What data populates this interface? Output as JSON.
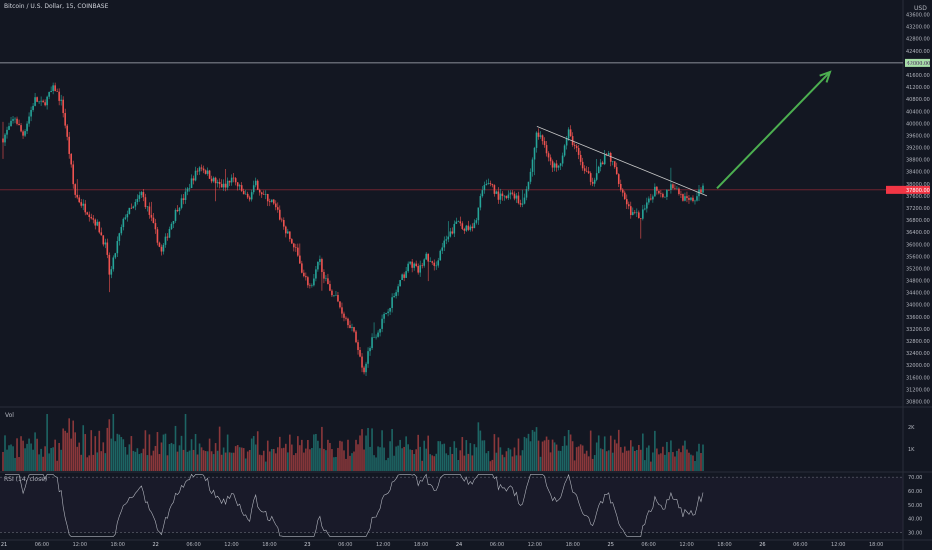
{
  "header": {
    "symbol_line": "Bitcoin / U.S. Dollar, 15, COINBASE",
    "currency": "USD"
  },
  "panes": {
    "volume_label": "Vol",
    "rsi_label": "RSI (14, close)"
  },
  "colors": {
    "background": "#131722",
    "up": "#26a69a",
    "down": "#ef5350",
    "price_line": "#f23645",
    "target_line": "#b2b5be",
    "target_badge": "#a7e0a7",
    "arrow": "#4caf50",
    "trendline": "#c8c8c8",
    "rsi_line": "#b2b5be"
  },
  "chart_data": {
    "type": "candlestick",
    "price_axis_ticks": [
      43600,
      43200,
      42800,
      42400,
      42000,
      41600,
      41200,
      40800,
      40400,
      40000,
      39600,
      39200,
      38800,
      38400,
      38000,
      37600,
      37200,
      36800,
      36400,
      36000,
      35600,
      35200,
      34800,
      34400,
      34000,
      33600,
      33200,
      32800,
      32400,
      32000,
      31600,
      31200,
      30800
    ],
    "price_tick_labels": [
      "43600.00",
      "43200.00",
      "42800.00",
      "42400.00",
      "42000.00",
      "41600.00",
      "41200.00",
      "40800.00",
      "40400.00",
      "40000.00",
      "39600.00",
      "39200.00",
      "38800.00",
      "38400.00",
      "38000.00",
      "37600.00",
      "37200.00",
      "36800.00",
      "36400.00",
      "36000.00",
      "35600.00",
      "35200.00",
      "34800.00",
      "34400.00",
      "34000.00",
      "33600.00",
      "33200.00",
      "32800.00",
      "32400.00",
      "32000.00",
      "31600.00",
      "31200.00",
      "30800.00"
    ],
    "ylim": [
      30650,
      43750
    ],
    "horizontal_level": {
      "value": 42000,
      "label": "42000.00"
    },
    "current_price": {
      "value": 37800,
      "label": "37800.00"
    },
    "time_axis_labels": [
      "21",
      "06:00",
      "12:00",
      "18:00",
      "22",
      "06:00",
      "12:00",
      "18:00",
      "23",
      "06:00",
      "12:00",
      "18:00",
      "24",
      "06:00",
      "12:00",
      "18:00",
      "25",
      "06:00",
      "12:00",
      "18:00",
      "26",
      "06:00",
      "12:00",
      "18:00"
    ],
    "price_path": [
      {
        "t": 0,
        "p": 39500
      },
      {
        "t": 3,
        "p": 40200
      },
      {
        "t": 5,
        "p": 39600
      },
      {
        "t": 8,
        "p": 40800
      },
      {
        "t": 10,
        "p": 40600
      },
      {
        "t": 13,
        "p": 41200
      },
      {
        "t": 15,
        "p": 40600
      },
      {
        "t": 17,
        "p": 38800
      },
      {
        "t": 18,
        "p": 37700
      },
      {
        "t": 20,
        "p": 37300
      },
      {
        "t": 22,
        "p": 37000
      },
      {
        "t": 24,
        "p": 36600
      },
      {
        "t": 26,
        "p": 35900
      },
      {
        "t": 27,
        "p": 34900
      },
      {
        "t": 29,
        "p": 36100
      },
      {
        "t": 31,
        "p": 37000
      },
      {
        "t": 33,
        "p": 37200
      },
      {
        "t": 35,
        "p": 37700
      },
      {
        "t": 37,
        "p": 37000
      },
      {
        "t": 39,
        "p": 36200
      },
      {
        "t": 40,
        "p": 35700
      },
      {
        "t": 42,
        "p": 36500
      },
      {
        "t": 44,
        "p": 37200
      },
      {
        "t": 46,
        "p": 37600
      },
      {
        "t": 48,
        "p": 38200
      },
      {
        "t": 50,
        "p": 38600
      },
      {
        "t": 52,
        "p": 38300
      },
      {
        "t": 54,
        "p": 38000
      },
      {
        "t": 56,
        "p": 37900
      },
      {
        "t": 58,
        "p": 38200
      },
      {
        "t": 60,
        "p": 37800
      },
      {
        "t": 62,
        "p": 37500
      },
      {
        "t": 64,
        "p": 38000
      },
      {
        "t": 66,
        "p": 37600
      },
      {
        "t": 68,
        "p": 37400
      },
      {
        "t": 70,
        "p": 36900
      },
      {
        "t": 72,
        "p": 36300
      },
      {
        "t": 74,
        "p": 35800
      },
      {
        "t": 76,
        "p": 35000
      },
      {
        "t": 78,
        "p": 34500
      },
      {
        "t": 80,
        "p": 35500
      },
      {
        "t": 82,
        "p": 34600
      },
      {
        "t": 84,
        "p": 34300
      },
      {
        "t": 86,
        "p": 33700
      },
      {
        "t": 88,
        "p": 33300
      },
      {
        "t": 90,
        "p": 32500
      },
      {
        "t": 91,
        "p": 31700
      },
      {
        "t": 93,
        "p": 32800
      },
      {
        "t": 95,
        "p": 33200
      },
      {
        "t": 97,
        "p": 33800
      },
      {
        "t": 99,
        "p": 34300
      },
      {
        "t": 101,
        "p": 34900
      },
      {
        "t": 103,
        "p": 35400
      },
      {
        "t": 105,
        "p": 35100
      },
      {
        "t": 107,
        "p": 35600
      },
      {
        "t": 109,
        "p": 35200
      },
      {
        "t": 111,
        "p": 35900
      },
      {
        "t": 113,
        "p": 36300
      },
      {
        "t": 115,
        "p": 36800
      },
      {
        "t": 117,
        "p": 36500
      },
      {
        "t": 119,
        "p": 36500
      },
      {
        "t": 121,
        "p": 37700
      },
      {
        "t": 123,
        "p": 38100
      },
      {
        "t": 125,
        "p": 37600
      },
      {
        "t": 127,
        "p": 37500
      },
      {
        "t": 129,
        "p": 37700
      },
      {
        "t": 131,
        "p": 37300
      },
      {
        "t": 133,
        "p": 38100
      },
      {
        "t": 135,
        "p": 39700
      },
      {
        "t": 137,
        "p": 39300
      },
      {
        "t": 139,
        "p": 38500
      },
      {
        "t": 141,
        "p": 38800
      },
      {
        "t": 143,
        "p": 39700
      },
      {
        "t": 145,
        "p": 39100
      },
      {
        "t": 147,
        "p": 38400
      },
      {
        "t": 149,
        "p": 38100
      },
      {
        "t": 151,
        "p": 38600
      },
      {
        "t": 153,
        "p": 39000
      },
      {
        "t": 155,
        "p": 38400
      },
      {
        "t": 157,
        "p": 37600
      },
      {
        "t": 159,
        "p": 37000
      },
      {
        "t": 161,
        "p": 36900
      },
      {
        "t": 163,
        "p": 37300
      },
      {
        "t": 165,
        "p": 37900
      },
      {
        "t": 167,
        "p": 37600
      },
      {
        "t": 169,
        "p": 38000
      },
      {
        "t": 171,
        "p": 37700
      },
      {
        "t": 173,
        "p": 37400
      },
      {
        "t": 175,
        "p": 37500
      },
      {
        "t": 177,
        "p": 37900
      }
    ],
    "volume_axis_labels": [
      "2K",
      "1K"
    ],
    "rsi_axis_labels": [
      "70.00",
      "60.00",
      "50.00",
      "40.00",
      "30.00"
    ],
    "rsi_bands": [
      70,
      30
    ],
    "rsi_ylim": [
      26,
      73
    ]
  }
}
